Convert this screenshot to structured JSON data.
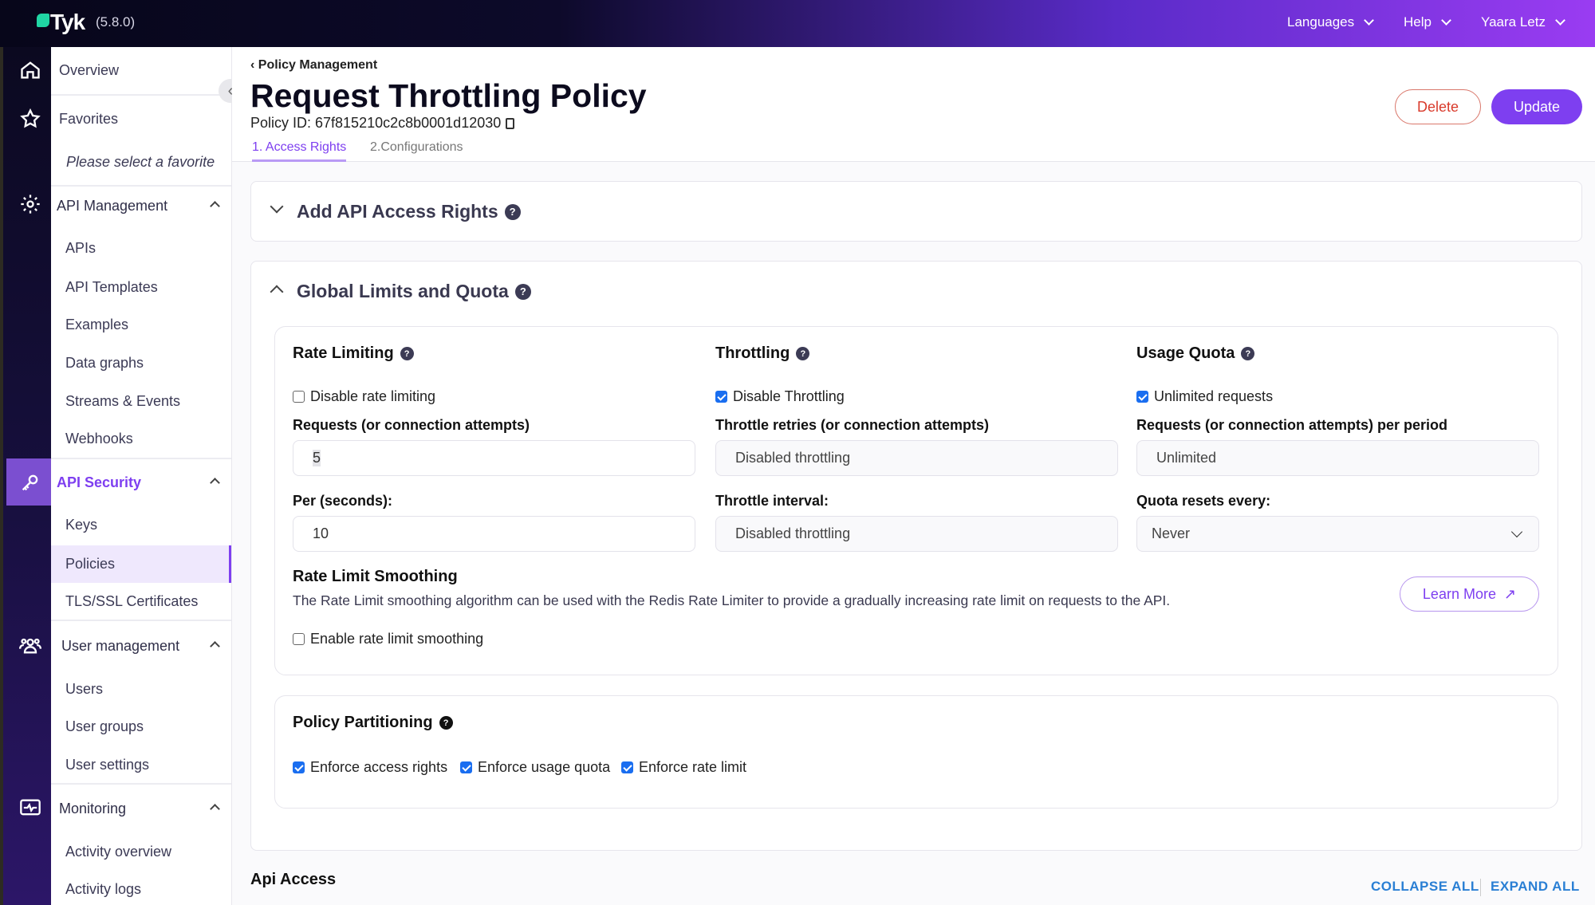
{
  "topbar": {
    "logo": "Tyk",
    "version": "(5.8.0)",
    "menus": [
      {
        "label": "Languages"
      },
      {
        "label": "Help"
      },
      {
        "label": "Yaara Letz"
      }
    ]
  },
  "rail": {
    "icons": [
      "home-icon",
      "star-icon",
      "gear-icon",
      "key-icon",
      "users-icon",
      "monitor-icon"
    ],
    "active_color": "#7b4fd0"
  },
  "sidebar": {
    "overview": "Overview",
    "favorites": "Favorites",
    "favorites_empty": "Please select a favorite",
    "sections": [
      {
        "label": "API Management",
        "items": [
          "APIs",
          "API Templates",
          "Examples",
          "Data graphs",
          "Streams & Events",
          "Webhooks"
        ]
      },
      {
        "label": "API Security",
        "items": [
          "Keys",
          "Policies",
          "TLS/SSL Certificates"
        ],
        "active": true,
        "active_item": "Policies"
      },
      {
        "label": "User management",
        "items": [
          "Users",
          "User groups",
          "User settings"
        ]
      },
      {
        "label": "Monitoring",
        "items": [
          "Activity overview",
          "Activity logs"
        ]
      }
    ]
  },
  "page": {
    "breadcrumb": "Policy Management",
    "title": "Request Throttling Policy",
    "policy_id": "Policy ID: 67f815210c2c8b0001d12030",
    "tabs": [
      {
        "label": "1. Access Rights",
        "active": true
      },
      {
        "label": "2.Configurations"
      }
    ],
    "delete_label": "Delete",
    "update_label": "Update",
    "accent": "#7e3ff0",
    "danger": "#d93a2b"
  },
  "access_rights": {
    "title": "Add API Access Rights"
  },
  "global": {
    "title": "Global Limits and Quota",
    "rate": {
      "title": "Rate Limiting",
      "checkbox": "Disable rate limiting",
      "checked": false,
      "requests_label": "Requests (or connection attempts)",
      "requests_value": "5",
      "per_label": "Per (seconds):",
      "per_value": "10"
    },
    "throttle": {
      "title": "Throttling",
      "checkbox": "Disable Throttling",
      "checked": true,
      "retries_label": "Throttle retries (or connection attempts)",
      "retries_value": "Disabled throttling",
      "interval_label": "Throttle interval:",
      "interval_value": "Disabled throttling"
    },
    "quota": {
      "title": "Usage Quota",
      "checkbox": "Unlimited requests",
      "checked": true,
      "requests_label": "Requests (or connection attempts) per period",
      "requests_value": "Unlimited",
      "reset_label": "Quota resets every:",
      "reset_value": "Never"
    },
    "smoothing": {
      "title": "Rate Limit Smoothing",
      "description": "The Rate Limit smoothing algorithm can be used with the Redis Rate Limiter to provide a gradually increasing rate limit on requests to the API.",
      "learn_more": "Learn More",
      "checkbox": "Enable rate limit smoothing",
      "checked": false
    },
    "partitioning": {
      "title": "Policy Partitioning",
      "options": [
        {
          "label": "Enforce access rights",
          "checked": true
        },
        {
          "label": "Enforce usage quota",
          "checked": true
        },
        {
          "label": "Enforce rate limit",
          "checked": true
        }
      ]
    }
  },
  "api_access": {
    "title": "Api Access",
    "collapse_all": "COLLAPSE ALL",
    "expand_all": "EXPAND ALL"
  }
}
